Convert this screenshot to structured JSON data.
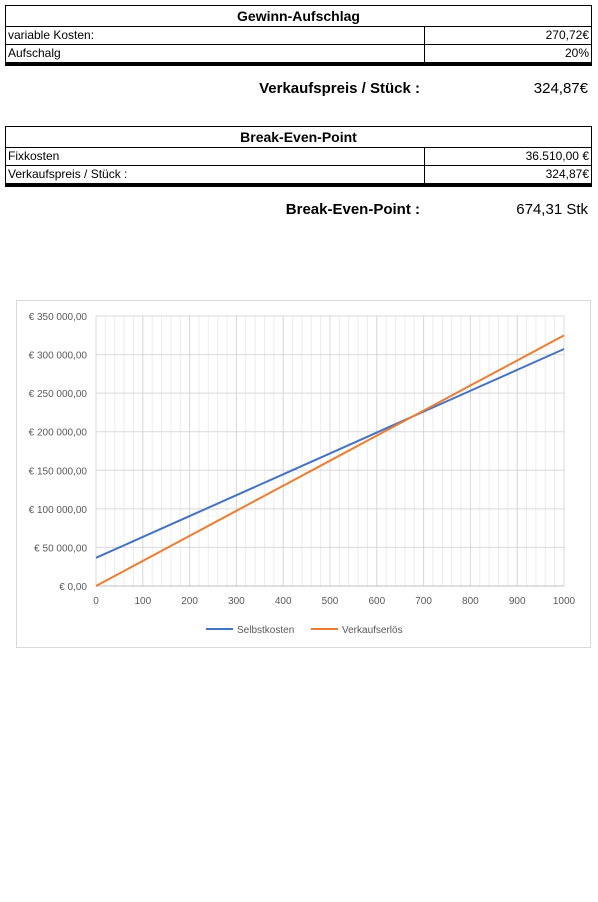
{
  "gewinn": {
    "title": "Gewinn-Aufschlag",
    "rows": [
      {
        "label": "variable Kosten:",
        "value": "270,72€"
      },
      {
        "label": "Aufschalg",
        "value": "20%"
      }
    ],
    "result_label": "Verkaufspreis / Stück :",
    "result_value": "324,87€"
  },
  "bep": {
    "title": "Break-Even-Point",
    "rows": [
      {
        "label": "Fixkosten",
        "value": "36.510,00 €"
      },
      {
        "label": "Verkaufspreis / Stück :",
        "value": "324,87€"
      }
    ],
    "result_label": "Break-Even-Point :",
    "result_value": "674,31 Stk"
  },
  "chart_data": {
    "type": "line",
    "x": [
      0,
      100,
      200,
      300,
      400,
      500,
      600,
      700,
      800,
      900,
      1000
    ],
    "series": [
      {
        "name": "Selbstkosten",
        "color": "#4472c4",
        "values": [
          36510,
          63582,
          90654,
          117726,
          144798,
          171870,
          198942,
          226014,
          253086,
          280158,
          307230
        ]
      },
      {
        "name": "Verkaufserlös",
        "color": "#ed7d31",
        "values": [
          0,
          32487,
          64974,
          97461,
          129948,
          162435,
          194922,
          227409,
          259896,
          292383,
          324870
        ]
      }
    ],
    "ylim": [
      0,
      350000
    ],
    "yticks": [
      0,
      50000,
      100000,
      150000,
      200000,
      250000,
      300000,
      350000
    ],
    "ytick_labels": [
      "€ 0,00",
      "€ 50 000,00",
      "€ 100 000,00",
      "€ 150 000,00",
      "€ 200 000,00",
      "€ 250 000,00",
      "€ 300 000,00",
      "€ 350 000,00"
    ],
    "xlim": [
      0,
      1000
    ],
    "xtick_labels": [
      "0",
      "100",
      "200",
      "300",
      "400",
      "500",
      "600",
      "700",
      "800",
      "900",
      "1000"
    ],
    "grid": true,
    "legend": "bottom"
  }
}
